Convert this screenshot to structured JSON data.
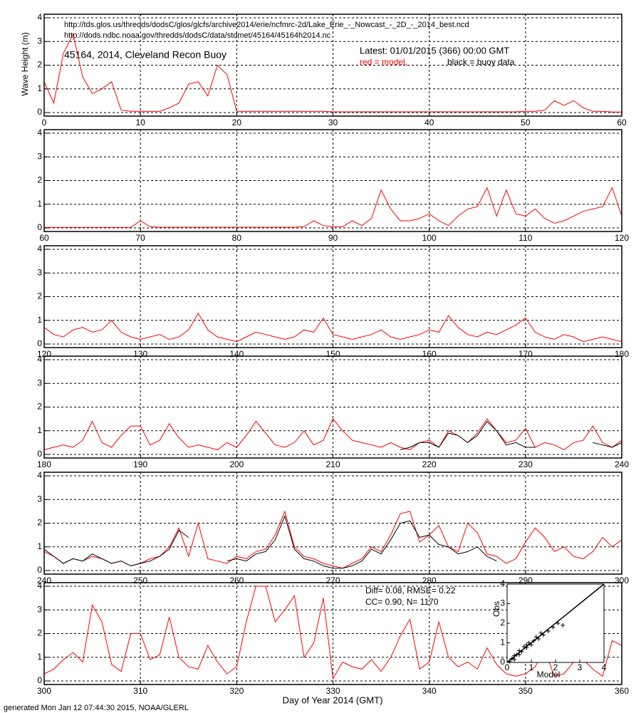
{
  "urls": [
    "http://tds.glos.us/thredds/dodsC/glos/glcfs/archive2014/erie/ncfmrc-2d/Lake_Erie_-_Nowcast_-_2D_-_2014_best.ncd",
    "http://dods.ndbc.noaa.gov/thredds/dodsC/data/stdmet/45164/45164h2014.nc"
  ],
  "title": "45164, 2014, Cleveland Recon Buoy",
  "latest": "Latest: 01/01/2015 (366) 00:00 GMT",
  "legend_model": "red = model,",
  "legend_buoy": "black = buoy data",
  "ylabel": "Wave Height (m)",
  "xlabel": "Day of Year 2014 (GMT)",
  "footer": "generated Mon Jan 12 07:44:30 2015, NOAA/GLERL",
  "stats": [
    "Diff= 0.08,  RMSE= 0.22",
    "CC= 0.90,  N= 1170"
  ],
  "chart_data": [
    {
      "type": "line",
      "xlim": [
        0,
        60
      ],
      "xticks": [
        0,
        10,
        20,
        30,
        40,
        50,
        60
      ],
      "ylim": [
        -0.15,
        4.15
      ],
      "yticks": [
        0,
        1,
        2,
        3,
        4
      ],
      "grid": true,
      "x": [
        0,
        1,
        2,
        3,
        4,
        5,
        6,
        7,
        8,
        9,
        10,
        11,
        12,
        13,
        14,
        15,
        16,
        17,
        18,
        19,
        20,
        21,
        22,
        23,
        24,
        25,
        26,
        27,
        28,
        29,
        30,
        31,
        32,
        33,
        34,
        35,
        36,
        37,
        38,
        39,
        40,
        41,
        42,
        43,
        44,
        45,
        46,
        47,
        48,
        49,
        50,
        51,
        52,
        53,
        54,
        55,
        56,
        57,
        58,
        59,
        60
      ],
      "series": [
        {
          "color": "#ff0000",
          "values": [
            1.3,
            0.4,
            2.5,
            3.3,
            1.5,
            0.8,
            1.0,
            1.3,
            0.1,
            0.05,
            0.05,
            0.05,
            0.05,
            0.2,
            0.4,
            1.2,
            1.3,
            0.7,
            2.0,
            1.6,
            0.05,
            0.05,
            0.05,
            0.05,
            0.05,
            0.05,
            0.05,
            0.05,
            0.05,
            0.05,
            0.03,
            0.03,
            0.03,
            0.03,
            0.03,
            0.03,
            0.03,
            0.03,
            0.03,
            0.03,
            0.03,
            0.03,
            0.03,
            0.03,
            0.03,
            0.03,
            0.03,
            0.03,
            0.03,
            0.03,
            0.05,
            0.05,
            0.1,
            0.5,
            0.3,
            0.5,
            0.2,
            0.05,
            0.05,
            0.02,
            0.02
          ]
        }
      ]
    },
    {
      "type": "line",
      "xlim": [
        60,
        120
      ],
      "xticks": [
        60,
        70,
        80,
        90,
        100,
        110,
        120
      ],
      "ylim": [
        -0.15,
        4.15
      ],
      "yticks": [
        0,
        1,
        2,
        3,
        4
      ],
      "grid": true,
      "x": [
        60,
        61,
        62,
        63,
        64,
        65,
        66,
        67,
        68,
        69,
        70,
        71,
        72,
        73,
        74,
        75,
        76,
        77,
        78,
        79,
        80,
        81,
        82,
        83,
        84,
        85,
        86,
        87,
        88,
        89,
        90,
        91,
        92,
        93,
        94,
        95,
        96,
        97,
        98,
        99,
        100,
        101,
        102,
        103,
        104,
        105,
        106,
        107,
        108,
        109,
        110,
        111,
        112,
        113,
        114,
        115,
        116,
        117,
        118,
        119,
        120
      ],
      "series": [
        {
          "color": "#ff0000",
          "values": [
            0.02,
            0.02,
            0.02,
            0.02,
            0.02,
            0.02,
            0.02,
            0.02,
            0.02,
            0.02,
            0.3,
            0.05,
            0.03,
            0.03,
            0.03,
            0.03,
            0.03,
            0.03,
            0.03,
            0.03,
            0.03,
            0.03,
            0.03,
            0.03,
            0.03,
            0.03,
            0.03,
            0.05,
            0.3,
            0.1,
            0.05,
            0.05,
            0.3,
            0.1,
            0.4,
            1.6,
            0.8,
            0.3,
            0.3,
            0.4,
            0.6,
            0.3,
            0.1,
            0.5,
            0.8,
            0.9,
            1.7,
            0.5,
            1.6,
            0.6,
            0.5,
            0.8,
            0.4,
            0.2,
            0.3,
            0.5,
            0.7,
            0.8,
            0.9,
            1.7,
            0.5
          ]
        }
      ]
    },
    {
      "type": "line",
      "xlim": [
        120,
        180
      ],
      "xticks": [
        120,
        130,
        140,
        150,
        160,
        170,
        180
      ],
      "ylim": [
        -0.15,
        4.15
      ],
      "yticks": [
        0,
        1,
        2,
        3,
        4
      ],
      "grid": true,
      "x": [
        120,
        121,
        122,
        123,
        124,
        125,
        126,
        127,
        128,
        129,
        130,
        131,
        132,
        133,
        134,
        135,
        136,
        137,
        138,
        139,
        140,
        141,
        142,
        143,
        144,
        145,
        146,
        147,
        148,
        149,
        150,
        151,
        152,
        153,
        154,
        155,
        156,
        157,
        158,
        159,
        160,
        161,
        162,
        163,
        164,
        165,
        166,
        167,
        168,
        169,
        170,
        171,
        172,
        173,
        174,
        175,
        176,
        177,
        178,
        179,
        180
      ],
      "series": [
        {
          "color": "#ff0000",
          "values": [
            0.7,
            0.4,
            0.3,
            0.6,
            0.7,
            0.5,
            0.6,
            1.0,
            0.5,
            0.3,
            0.2,
            0.3,
            0.4,
            0.2,
            0.3,
            0.6,
            1.3,
            0.6,
            0.3,
            0.2,
            0.1,
            0.3,
            0.5,
            0.4,
            0.3,
            0.2,
            0.3,
            0.6,
            0.5,
            1.1,
            0.4,
            0.3,
            0.2,
            0.3,
            0.4,
            0.6,
            0.3,
            0.2,
            0.3,
            0.4,
            0.6,
            0.5,
            1.2,
            0.7,
            0.4,
            0.3,
            0.5,
            0.4,
            0.6,
            0.8,
            1.1,
            0.5,
            0.3,
            0.2,
            0.4,
            0.3,
            0.1,
            0.2,
            0.3,
            0.2,
            0.1
          ]
        }
      ]
    },
    {
      "type": "line",
      "xlim": [
        180,
        240
      ],
      "xticks": [
        180,
        190,
        200,
        210,
        220,
        230,
        240
      ],
      "ylim": [
        -0.15,
        4.15
      ],
      "yticks": [
        0,
        1,
        2,
        3,
        4
      ],
      "grid": true,
      "x": [
        180,
        181,
        182,
        183,
        184,
        185,
        186,
        187,
        188,
        189,
        190,
        191,
        192,
        193,
        194,
        195,
        196,
        197,
        198,
        199,
        200,
        201,
        202,
        203,
        204,
        205,
        206,
        207,
        208,
        209,
        210,
        211,
        212,
        213,
        214,
        215,
        216,
        217,
        218,
        219,
        220,
        221,
        222,
        223,
        224,
        225,
        226,
        227,
        228,
        229,
        230,
        231,
        232,
        233,
        234,
        235,
        236,
        237,
        238,
        239,
        240
      ],
      "series": [
        {
          "color": "#ff0000",
          "values": [
            0.2,
            0.3,
            0.4,
            0.3,
            0.6,
            1.4,
            0.5,
            0.3,
            0.8,
            1.2,
            1.2,
            0.4,
            0.6,
            1.3,
            0.7,
            0.3,
            0.4,
            0.3,
            0.2,
            0.5,
            0.3,
            0.8,
            1.4,
            0.9,
            0.4,
            0.3,
            0.5,
            1.0,
            0.4,
            0.6,
            1.5,
            1.0,
            0.6,
            0.5,
            0.4,
            0.3,
            0.5,
            0.3,
            0.2,
            0.5,
            0.6,
            0.3,
            1.0,
            0.8,
            0.5,
            0.9,
            1.5,
            1.0,
            0.5,
            0.6,
            1.1,
            0.3,
            0.5,
            0.4,
            0.2,
            0.5,
            0.6,
            1.2,
            0.5,
            0.3,
            0.6
          ]
        },
        {
          "color": "#000000",
          "values": [
            null,
            null,
            null,
            null,
            null,
            null,
            null,
            null,
            null,
            null,
            null,
            null,
            null,
            null,
            null,
            null,
            null,
            null,
            null,
            null,
            null,
            null,
            null,
            null,
            null,
            null,
            null,
            null,
            null,
            null,
            null,
            null,
            null,
            null,
            null,
            null,
            null,
            0.2,
            0.3,
            0.5,
            0.5,
            0.3,
            0.9,
            0.8,
            0.5,
            0.8,
            1.4,
            1.0,
            0.4,
            0.5,
            0.3,
            0.3,
            null,
            null,
            null,
            null,
            null,
            0.5,
            0.4,
            0.3,
            0.5
          ]
        }
      ]
    },
    {
      "type": "line",
      "xlim": [
        240,
        300
      ],
      "xticks": [
        240,
        250,
        260,
        270,
        280,
        290,
        300
      ],
      "ylim": [
        -0.15,
        4.15
      ],
      "yticks": [
        0,
        1,
        2,
        3,
        4
      ],
      "grid": true,
      "x": [
        240,
        241,
        242,
        243,
        244,
        245,
        246,
        247,
        248,
        249,
        250,
        251,
        252,
        253,
        254,
        255,
        256,
        257,
        258,
        259,
        260,
        261,
        262,
        263,
        264,
        265,
        266,
        267,
        268,
        269,
        270,
        271,
        272,
        273,
        274,
        275,
        276,
        277,
        278,
        279,
        280,
        281,
        282,
        283,
        284,
        285,
        286,
        287,
        288,
        289,
        290,
        291,
        292,
        293,
        294,
        295,
        296,
        297,
        298,
        299,
        300
      ],
      "series": [
        {
          "color": "#ff0000",
          "values": [
            0.8,
            0.6,
            0.3,
            0.5,
            0.4,
            0.6,
            0.5,
            0.3,
            0.4,
            0.2,
            0.3,
            0.5,
            0.6,
            1.0,
            1.8,
            0.6,
            2.0,
            0.5,
            0.4,
            0.3,
            0.6,
            0.5,
            0.8,
            0.9,
            1.5,
            2.5,
            1.0,
            0.6,
            0.5,
            0.3,
            0.2,
            0.1,
            0.3,
            0.5,
            1.0,
            0.8,
            1.5,
            2.4,
            2.5,
            1.2,
            1.5,
            1.9,
            1.0,
            0.8,
            2.0,
            1.6,
            0.7,
            0.6,
            0.3,
            0.5,
            1.2,
            1.8,
            1.4,
            0.8,
            1.0,
            0.6,
            0.5,
            0.8,
            1.4,
            1.0,
            1.3
          ]
        },
        {
          "color": "#000000",
          "values": [
            0.9,
            0.6,
            0.3,
            0.5,
            0.4,
            0.7,
            0.5,
            0.3,
            0.4,
            0.2,
            0.3,
            0.4,
            0.6,
            0.9,
            1.7,
            1.4,
            null,
            null,
            null,
            0.4,
            0.5,
            0.4,
            0.7,
            0.8,
            1.3,
            2.3,
            0.9,
            0.5,
            0.4,
            0.2,
            0.1,
            0.1,
            0.2,
            0.4,
            0.9,
            0.7,
            1.3,
            2.0,
            2.1,
            1.4,
            1.5,
            1.1,
            1.0,
            0.7,
            0.8,
            1.0,
            0.6,
            0.4,
            null,
            null,
            null,
            null,
            null,
            null,
            null,
            null,
            null,
            null,
            null,
            null,
            null
          ]
        }
      ]
    },
    {
      "type": "line",
      "xlim": [
        300,
        360
      ],
      "xticks": [
        300,
        310,
        320,
        330,
        340,
        350,
        360
      ],
      "ylim": [
        -0.15,
        4.15
      ],
      "yticks": [
        0,
        1,
        2,
        3,
        4
      ],
      "grid": true,
      "x": [
        300,
        301,
        302,
        303,
        304,
        305,
        306,
        307,
        308,
        309,
        310,
        311,
        312,
        313,
        314,
        315,
        316,
        317,
        318,
        319,
        320,
        321,
        322,
        323,
        324,
        325,
        326,
        327,
        328,
        329,
        330,
        331,
        332,
        333,
        334,
        335,
        336,
        337,
        338,
        339,
        340,
        341,
        342,
        343,
        344,
        345,
        346,
        347,
        348,
        349,
        350,
        351,
        352,
        353,
        354,
        355,
        356,
        357,
        358,
        359,
        360
      ],
      "series": [
        {
          "color": "#ff0000",
          "values": [
            0.3,
            0.5,
            0.9,
            1.2,
            0.8,
            3.2,
            2.5,
            0.7,
            0.4,
            2.0,
            2.0,
            0.9,
            1.1,
            2.7,
            1.0,
            0.6,
            0.5,
            1.5,
            0.8,
            0.3,
            0.6,
            2.5,
            4.0,
            4.0,
            2.5,
            3.0,
            3.6,
            1.0,
            1.6,
            3.5,
            0.1,
            0.8,
            0.6,
            0.5,
            0.9,
            0.4,
            1.0,
            1.9,
            2.6,
            0.5,
            0.8,
            2.5,
            1.0,
            0.6,
            0.8,
            0.5,
            1.4,
            0.7,
            0.3,
            0.2,
            0.3,
            0.6,
            1.3,
            0.2,
            0.3,
            0.8,
            0.9,
            0.5,
            0.2,
            1.7,
            1.5
          ]
        }
      ]
    },
    {
      "type": "scatter",
      "xlim": [
        0,
        4
      ],
      "ylim": [
        0,
        4
      ],
      "xticks": [
        0,
        1,
        2,
        3,
        4
      ],
      "yticks": [
        0,
        1,
        2,
        3,
        4
      ],
      "xlabel": "Model",
      "ylabel": "Obs",
      "x": [
        0.1,
        0.2,
        0.3,
        0.4,
        0.5,
        0.6,
        0.7,
        0.8,
        0.9,
        1.0,
        1.1,
        1.2,
        1.3,
        1.4,
        1.5,
        1.7,
        1.9,
        2.1,
        2.3,
        0.3,
        0.5,
        0.8
      ],
      "values": [
        0.05,
        0.2,
        0.35,
        0.4,
        0.6,
        0.55,
        0.8,
        0.75,
        1.0,
        0.9,
        1.1,
        1.3,
        1.2,
        1.5,
        1.4,
        1.6,
        1.8,
        2.0,
        1.9,
        0.15,
        0.4,
        0.9
      ],
      "color": "#000000"
    }
  ]
}
